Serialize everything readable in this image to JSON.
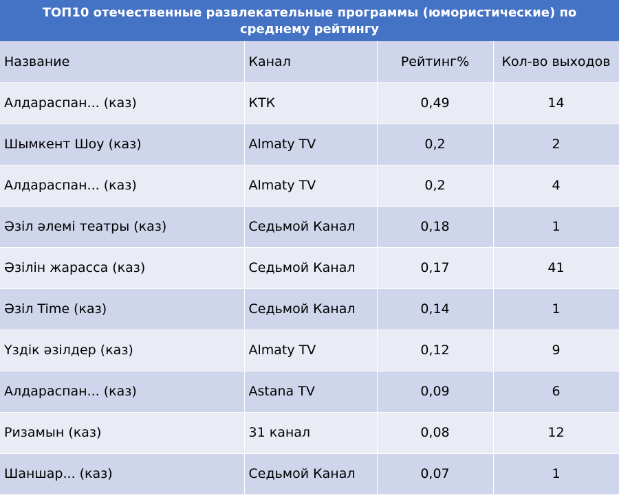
{
  "title": "ТОП10 отечественные развлекательные программы (юмористические) по среднему рейтингу",
  "columns": [
    "Название",
    "Канал",
    "Рейтинг%",
    "Кол-во выходов"
  ],
  "rows": [
    [
      "Алдараспан... (каз)",
      "КТК",
      "0,49",
      "14"
    ],
    [
      "Шымкент Шоу (каз)",
      "Almaty TV",
      "0,2",
      "2"
    ],
    [
      "Алдараспан... (каз)",
      "Almaty TV",
      "0,2",
      "4"
    ],
    [
      "Әзіл әлемі театры (каз)",
      "Седьмой Канал",
      "0,18",
      "1"
    ],
    [
      "Әзілін жарасса (каз)",
      "Седьмой Канал",
      "0,17",
      "41"
    ],
    [
      "Әзіл Time (каз)",
      "Седьмой Канал",
      "0,14",
      "1"
    ],
    [
      "Үздік әзілдер (каз)",
      "Almaty TV",
      "0,12",
      "9"
    ],
    [
      "Алдараспан... (каз)",
      "Astana TV",
      "0,09",
      "6"
    ],
    [
      "Ризамын (каз)",
      "31 канал",
      "0,08",
      "12"
    ],
    [
      "Шаншар... (каз)",
      "Седьмой Канал",
      "0,07",
      "1"
    ]
  ],
  "colors": {
    "header_fill": "#4472c4",
    "band_dark": "#cfd5ea",
    "band_light": "#e9ebf5"
  }
}
